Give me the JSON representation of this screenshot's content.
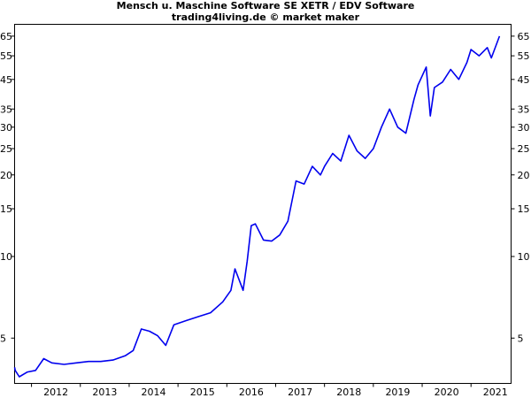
{
  "chart_data": {
    "type": "line",
    "title": "Mensch u. Maschine Software SE XETR / EDV Software",
    "subtitle": "trading4living.de © market maker",
    "xlabel": "",
    "ylabel": "",
    "yscale": "log",
    "grid": false,
    "line_color": "#0000ee",
    "y_ticks": [
      5,
      10,
      15,
      20,
      25,
      30,
      35,
      45,
      55,
      65
    ],
    "x_ticks": [
      "2012",
      "2013",
      "2014",
      "2015",
      "2016",
      "2017",
      "2018",
      "2019",
      "2020",
      "2021"
    ],
    "xlim": [
      "2011-07",
      "2021-09"
    ],
    "ylim": [
      3.6,
      70
    ],
    "series": [
      {
        "x": [
          "2011-07",
          "2011-09",
          "2011-10",
          "2011-12",
          "2012-02",
          "2012-04",
          "2012-06",
          "2012-09",
          "2012-12",
          "2013-03",
          "2013-06",
          "2013-09",
          "2013-12",
          "2014-02",
          "2014-04",
          "2014-06",
          "2014-08",
          "2014-10",
          "2014-12",
          "2015-03",
          "2015-06",
          "2015-09",
          "2015-12",
          "2016-02",
          "2016-03",
          "2016-05",
          "2016-06",
          "2016-07",
          "2016-08",
          "2016-10",
          "2016-12",
          "2017-02",
          "2017-04",
          "2017-06",
          "2017-08",
          "2017-10",
          "2017-12",
          "2018-01",
          "2018-03",
          "2018-05",
          "2018-07",
          "2018-09",
          "2018-11",
          "2019-01",
          "2019-03",
          "2019-05",
          "2019-07",
          "2019-09",
          "2019-11",
          "2019-12",
          "2020-02",
          "2020-03",
          "2020-04",
          "2020-06",
          "2020-08",
          "2020-10",
          "2020-12",
          "2021-01",
          "2021-03",
          "2021-05",
          "2021-06",
          "2021-08"
        ],
        "values": [
          3.9,
          3.8,
          3.6,
          3.75,
          3.8,
          4.2,
          4.05,
          4.0,
          4.05,
          4.1,
          4.1,
          4.15,
          4.3,
          4.5,
          5.4,
          5.3,
          5.1,
          4.7,
          5.6,
          5.8,
          6.0,
          6.2,
          6.8,
          7.5,
          9.0,
          7.5,
          9.6,
          13.0,
          13.2,
          11.5,
          11.4,
          12.0,
          13.5,
          19.0,
          18.5,
          21.5,
          20.0,
          21.5,
          24.0,
          22.5,
          28.0,
          24.5,
          23.0,
          25.0,
          30.0,
          35.0,
          30.0,
          28.5,
          38.0,
          43.0,
          50.0,
          33.0,
          42.0,
          44.0,
          49.0,
          45.0,
          52.0,
          58.0,
          55.0,
          59.0,
          54.0,
          65.0
        ]
      }
    ]
  }
}
